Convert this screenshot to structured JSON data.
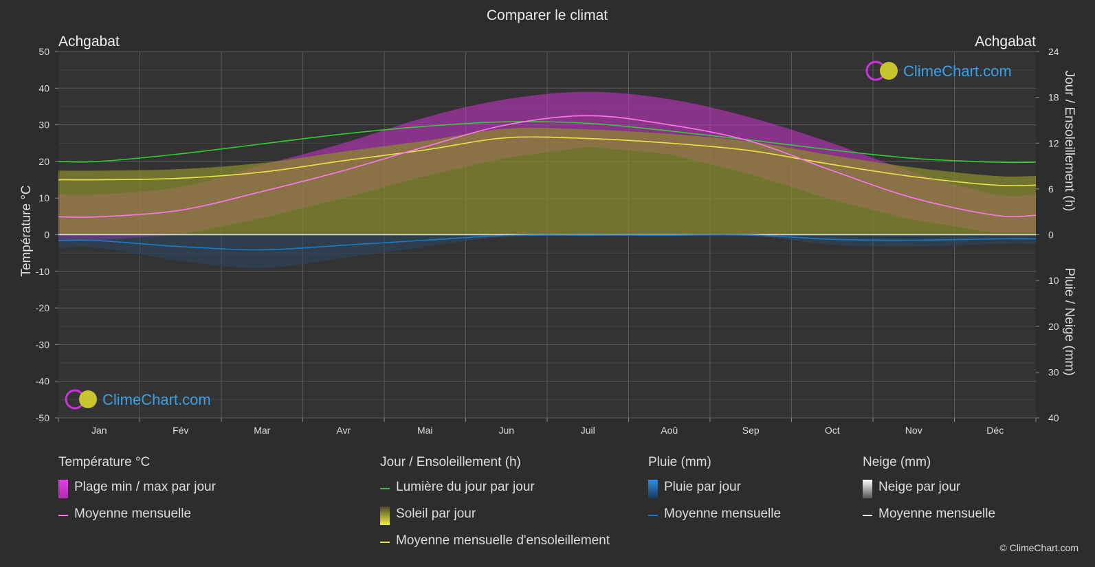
{
  "title": "Comparer le climat",
  "location_left": "Achgabat",
  "location_right": "Achgabat",
  "watermark": "ClimeChart.com",
  "copyright": "© ClimeChart.com",
  "colors": {
    "background": "#2d2d2d",
    "temp_range": "#cc33cc",
    "temp_mean": "#ff77ee",
    "daylight": "#33cc33",
    "sunshine_fill": "#8a8a30",
    "sunshine_mean": "#e6e64a",
    "rain": "#1e78c8",
    "snow": "#ffffff"
  },
  "legend": [
    {
      "title": "Température °C",
      "items": [
        {
          "label": "Plage min / max par jour",
          "swatch": "box-magenta"
        },
        {
          "label": "Moyenne mensuelle",
          "swatch": "line-pink"
        }
      ]
    },
    {
      "title": "Jour / Ensoleillement (h)",
      "items": [
        {
          "label": "Lumière du jour par jour",
          "swatch": "line-green"
        },
        {
          "label": "Soleil par jour",
          "swatch": "box-yellow"
        },
        {
          "label": "Moyenne mensuelle d'ensoleillement",
          "swatch": "line-yellow"
        }
      ]
    },
    {
      "title": "Pluie (mm)",
      "items": [
        {
          "label": "Pluie par jour",
          "swatch": "box-blue"
        },
        {
          "label": "Moyenne mensuelle",
          "swatch": "line-blue"
        }
      ]
    },
    {
      "title": "Neige (mm)",
      "items": [
        {
          "label": "Neige par jour",
          "swatch": "box-white"
        },
        {
          "label": "Moyenne mensuelle",
          "swatch": "line-white"
        }
      ]
    }
  ],
  "chart_data": {
    "type": "area",
    "title": "Comparer le climat",
    "grid": true,
    "categories": [
      "Jan",
      "Fév",
      "Mar",
      "Avr",
      "Mai",
      "Jun",
      "Juil",
      "Aoû",
      "Sep",
      "Oct",
      "Nov",
      "Déc"
    ],
    "y_left": {
      "label": "Température °C",
      "range": [
        -50,
        50
      ],
      "ticks": [
        "50",
        "40",
        "30",
        "20",
        "10",
        "0",
        "-10",
        "-20",
        "-30",
        "-40",
        "-50"
      ]
    },
    "y_right_top": {
      "label": "Jour / Ensoleillement (h)",
      "range": [
        0,
        24
      ],
      "ticks": [
        "24",
        "18",
        "12",
        "6",
        "0"
      ]
    },
    "y_right_bottom": {
      "label": "Pluie / Neige (mm)",
      "range": [
        0,
        40
      ],
      "ticks": [
        "10",
        "20",
        "30",
        "40"
      ]
    },
    "series": [
      {
        "name": "Moyenne mensuelle",
        "unit": "°C",
        "values": [
          4.9,
          6.7,
          11.8,
          17.5,
          24.0,
          30.0,
          32.5,
          30.0,
          25.5,
          17.5,
          10.0,
          5.3
        ]
      },
      {
        "name": "Lumière du jour par jour",
        "unit": "h",
        "values": [
          9.6,
          10.6,
          11.9,
          13.2,
          14.2,
          14.8,
          14.6,
          13.6,
          12.4,
          11.1,
          10.0,
          9.5
        ]
      },
      {
        "name": "Moyenne mensuelle d'ensoleillement",
        "unit": "h",
        "values": [
          7.2,
          7.4,
          8.2,
          9.7,
          11.1,
          12.7,
          12.6,
          12.0,
          11.0,
          9.2,
          7.6,
          6.5
        ]
      },
      {
        "name": "Moyenne mensuelle",
        "unit": "mm",
        "values": [
          1.3,
          2.6,
          3.3,
          2.3,
          1.2,
          0.2,
          0.1,
          0.1,
          0.1,
          1.0,
          1.2,
          0.9
        ]
      },
      {
        "name": "Plage min / max par jour",
        "unit": "°C",
        "min": [
          -1.5,
          0.0,
          4.5,
          10.0,
          16.0,
          21.0,
          24.0,
          22.0,
          16.5,
          9.5,
          4.0,
          0.5
        ],
        "max": [
          11.0,
          13.0,
          19.0,
          25.0,
          32.0,
          37.0,
          39.0,
          37.0,
          32.0,
          25.0,
          17.0,
          11.0
        ]
      }
    ]
  }
}
